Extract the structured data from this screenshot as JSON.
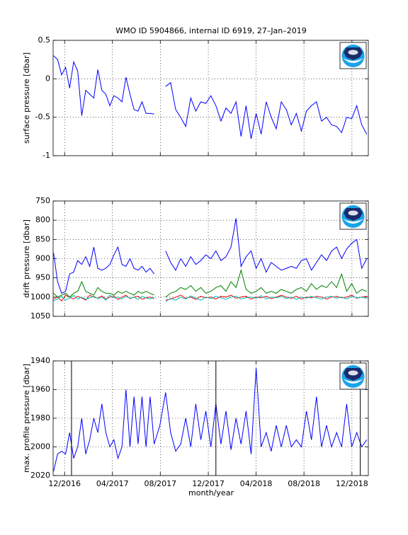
{
  "chart_data": [
    {
      "type": "line",
      "title": "WMO ID 5904866, internal ID 6919, 27–Jan–2019",
      "ylabel": "surface pressure [dbar]",
      "x": [
        2016.84,
        2016.868,
        2016.896,
        2016.924,
        2016.952,
        2016.98,
        2017.008,
        2017.036,
        2017.064,
        2017.092,
        2017.12,
        2017.148,
        2017.176,
        2017.204,
        2017.232,
        2017.26,
        2017.288,
        2017.316,
        2017.344,
        2017.372,
        2017.4,
        2017.428,
        2017.456,
        2017.484,
        2017.512,
        2017.54,
        2017.58,
        2017.62,
        2017.655,
        2017.69,
        2017.725,
        2017.76,
        2017.795,
        2017.83,
        2017.865,
        2017.9,
        2017.935,
        2017.97,
        2018.005,
        2018.04,
        2018.075,
        2018.11,
        2018.145,
        2018.18,
        2018.215,
        2018.25,
        2018.285,
        2018.32,
        2018.355,
        2018.39,
        2018.425,
        2018.46,
        2018.495,
        2018.53,
        2018.565,
        2018.6,
        2018.635,
        2018.67,
        2018.705,
        2018.74,
        2018.775,
        2018.81,
        2018.845,
        2018.88,
        2018.915,
        2018.95,
        2018.985,
        2019.02
      ],
      "values": [
        0.3,
        0.25,
        0.05,
        0.15,
        -0.12,
        0.22,
        0.1,
        -0.48,
        -0.15,
        -0.2,
        -0.25,
        0.12,
        -0.15,
        -0.2,
        -0.35,
        -0.22,
        -0.25,
        -0.3,
        0.02,
        -0.2,
        -0.4,
        -0.42,
        -0.3,
        -0.45,
        -0.45,
        -0.46,
        null,
        -0.1,
        -0.05,
        -0.4,
        -0.5,
        -0.62,
        -0.25,
        -0.42,
        -0.3,
        -0.32,
        -0.22,
        -0.35,
        -0.55,
        -0.38,
        -0.45,
        -0.3,
        -0.75,
        -0.35,
        -0.78,
        -0.45,
        -0.72,
        -0.3,
        -0.5,
        -0.65,
        -0.3,
        -0.4,
        -0.6,
        -0.45,
        -0.68,
        -0.42,
        -0.35,
        -0.3,
        -0.55,
        -0.5,
        -0.6,
        -0.62,
        -0.7,
        -0.5,
        -0.52,
        -0.35,
        -0.6,
        -0.72
      ],
      "color": "#0000ff",
      "xlim": [
        2016.837,
        2019.031
      ],
      "ylim": [
        -1,
        0.5
      ],
      "yticks": [
        -1,
        -0.5,
        0,
        0.5
      ],
      "grid": true
    },
    {
      "type": "line",
      "ylabel": "drift pressure [dbar]",
      "x": [
        2016.84,
        2016.868,
        2016.896,
        2016.924,
        2016.952,
        2016.98,
        2017.008,
        2017.036,
        2017.064,
        2017.092,
        2017.12,
        2017.148,
        2017.176,
        2017.204,
        2017.232,
        2017.26,
        2017.288,
        2017.316,
        2017.344,
        2017.372,
        2017.4,
        2017.428,
        2017.456,
        2017.484,
        2017.512,
        2017.54,
        2017.58,
        2017.62,
        2017.655,
        2017.69,
        2017.725,
        2017.76,
        2017.795,
        2017.83,
        2017.865,
        2017.9,
        2017.935,
        2017.97,
        2018.005,
        2018.04,
        2018.075,
        2018.11,
        2018.145,
        2018.18,
        2018.215,
        2018.25,
        2018.285,
        2018.32,
        2018.355,
        2018.39,
        2018.425,
        2018.46,
        2018.495,
        2018.53,
        2018.565,
        2018.6,
        2018.635,
        2018.67,
        2018.705,
        2018.74,
        2018.775,
        2018.81,
        2018.845,
        2018.88,
        2018.915,
        2018.95,
        2018.985,
        2019.02
      ],
      "series": [
        {
          "color": "#ff0000",
          "values": [
            1005,
            1000,
            1010,
            995,
            1000,
            1005,
            998,
            1002,
            1008,
            995,
            1000,
            1003,
            997,
            1005,
            1000,
            998,
            1006,
            1000,
            995,
            1004,
            1000,
            998,
            1005,
            1002,
            1000,
            1004,
            null,
            1008,
            1005,
            1000,
            995,
            1003,
            1000,
            1006,
            998,
            1002,
            1000,
            1005,
            998,
            1000,
            995,
            1003,
            1000,
            998,
            1005,
            1000,
            1002,
            998,
            1004,
            1000,
            995,
            1000,
            1003,
            998,
            1005,
            1000,
            1002,
            998,
            1000,
            1005,
            1000,
            998,
            1002,
            1000,
            995,
            1003,
            1000,
            998
          ]
        },
        {
          "color": "#00bfbf",
          "values": [
            1010,
            1005,
            998,
            1008,
            1003,
            995,
            1005,
            1000,
            1006,
            1002,
            998,
            1004,
            1000,
            1008,
            995,
            1002,
            1000,
            1005,
            998,
            1003,
            1000,
            1006,
            998,
            1002,
            1005,
            1000,
            null,
            1012,
            1003,
            1008,
            1000,
            1005,
            997,
            1003,
            1008,
            1000,
            1004,
            998,
            1002,
            1006,
            1000,
            998,
            1005,
            1002,
            1000,
            1003,
            996,
            1005,
            1000,
            1002,
            998,
            1004,
            1000,
            1006,
            1000,
            1003,
            998,
            1002,
            1005,
            1000,
            998,
            1003,
            1000,
            1005,
            998,
            1002,
            1000,
            1004
          ]
        },
        {
          "color": "#008000",
          "values": [
            990,
            1000,
            995,
            990,
            1000,
            990,
            985,
            960,
            985,
            990,
            995,
            975,
            985,
            990,
            990,
            995,
            985,
            990,
            985,
            990,
            995,
            985,
            990,
            985,
            990,
            995,
            null,
            1000,
            990,
            985,
            975,
            980,
            970,
            985,
            975,
            990,
            985,
            975,
            970,
            985,
            960,
            975,
            930,
            980,
            990,
            985,
            975,
            990,
            985,
            990,
            980,
            985,
            990,
            980,
            975,
            985,
            965,
            980,
            970,
            975,
            960,
            975,
            940,
            985,
            965,
            990,
            980,
            985
          ]
        },
        {
          "color": "#0000ff",
          "values": [
            885,
            960,
            990,
            985,
            940,
            935,
            905,
            915,
            895,
            920,
            870,
            925,
            930,
            925,
            915,
            890,
            870,
            915,
            920,
            900,
            925,
            930,
            920,
            935,
            925,
            940,
            null,
            880,
            910,
            930,
            900,
            920,
            895,
            915,
            905,
            890,
            900,
            880,
            905,
            895,
            870,
            795,
            920,
            895,
            880,
            925,
            900,
            935,
            910,
            920,
            930,
            925,
            920,
            925,
            905,
            900,
            930,
            910,
            890,
            905,
            880,
            870,
            900,
            875,
            860,
            850,
            925,
            900
          ]
        }
      ],
      "xlim": [
        2016.837,
        2019.031
      ],
      "ylim": [
        1050,
        750
      ],
      "yticks": [
        750,
        800,
        850,
        900,
        950,
        1000,
        1050
      ],
      "grid": true
    },
    {
      "type": "line",
      "ylabel": "max. profile pressure [dbar]",
      "xlabel": "month/year",
      "x": [
        2016.84,
        2016.868,
        2016.896,
        2016.924,
        2016.952,
        2016.98,
        2017.008,
        2017.036,
        2017.064,
        2017.092,
        2017.12,
        2017.148,
        2017.176,
        2017.204,
        2017.232,
        2017.26,
        2017.288,
        2017.316,
        2017.344,
        2017.372,
        2017.4,
        2017.428,
        2017.456,
        2017.484,
        2017.512,
        2017.54,
        2017.58,
        2017.62,
        2017.655,
        2017.69,
        2017.725,
        2017.76,
        2017.795,
        2017.83,
        2017.865,
        2017.9,
        2017.935,
        2017.97,
        2018.005,
        2018.04,
        2018.075,
        2018.11,
        2018.145,
        2018.18,
        2018.215,
        2018.25,
        2018.285,
        2018.32,
        2018.355,
        2018.39,
        2018.425,
        2018.46,
        2018.495,
        2018.53,
        2018.565,
        2018.6,
        2018.635,
        2018.67,
        2018.705,
        2018.74,
        2018.775,
        2018.81,
        2018.845,
        2018.88,
        2018.915,
        2018.95,
        2018.985,
        2019.02
      ],
      "values": [
        2017,
        2005,
        2003,
        2005,
        1990,
        2008,
        2000,
        1980,
        2005,
        1995,
        1980,
        1990,
        1970,
        1990,
        2000,
        1995,
        2008,
        2000,
        1960,
        2000,
        1965,
        1998,
        1965,
        2000,
        1965,
        1998,
        1985,
        1962,
        1990,
        2003,
        1998,
        1980,
        2000,
        1970,
        1995,
        1975,
        2000,
        1970,
        1998,
        1975,
        2002,
        1980,
        1998,
        1975,
        2005,
        1945,
        2000,
        1990,
        2003,
        1985,
        2000,
        1985,
        2000,
        1995,
        2000,
        1975,
        1995,
        1965,
        2000,
        1985,
        2000,
        1990,
        2000,
        1970,
        2000,
        1990,
        2000,
        1995
      ],
      "color": "#0000ff",
      "vlines": [
        2016.965,
        2017.97,
        2018.975
      ],
      "xlim": [
        2016.837,
        2019.031
      ],
      "ylim": [
        2020,
        1940
      ],
      "yticks": [
        1940,
        1960,
        1980,
        2000,
        2020
      ],
      "xticks": [
        {
          "value": 2016.917,
          "label": "12/2016"
        },
        {
          "value": 2017.25,
          "label": "04/2017"
        },
        {
          "value": 2017.583,
          "label": "08/2017"
        },
        {
          "value": 2017.917,
          "label": "12/2017"
        },
        {
          "value": 2018.25,
          "label": "04/2018"
        },
        {
          "value": 2018.583,
          "label": "08/2018"
        },
        {
          "value": 2018.917,
          "label": "12/2018"
        }
      ],
      "grid": true
    }
  ]
}
